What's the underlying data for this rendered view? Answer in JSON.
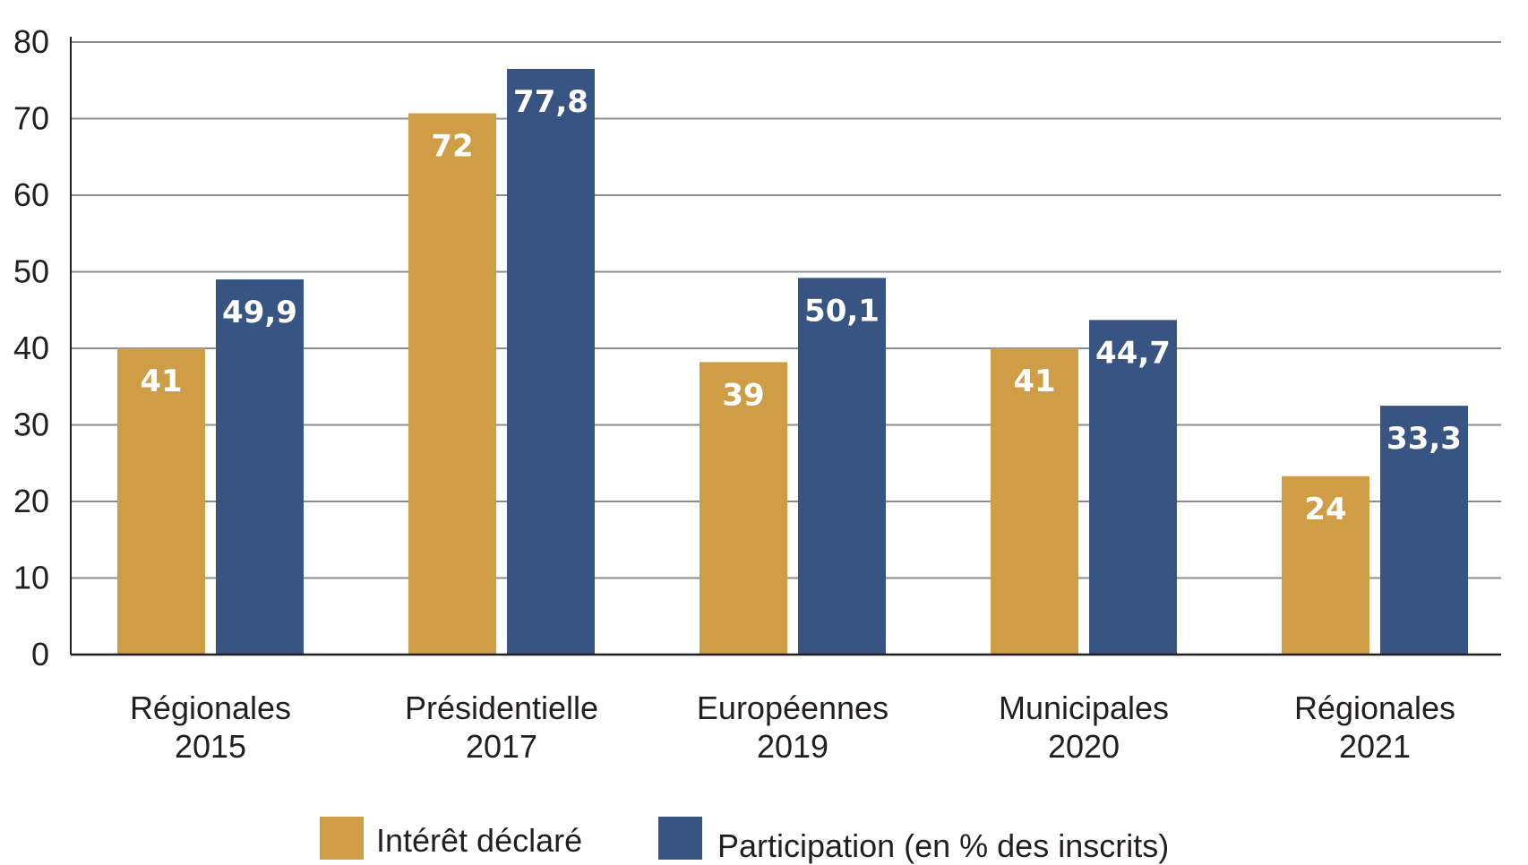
{
  "chart_data": {
    "type": "bar",
    "title": "",
    "xlabel": "",
    "ylabel": "",
    "ylim": [
      0,
      80
    ],
    "yticks": [
      0,
      10,
      20,
      30,
      40,
      50,
      60,
      70,
      80
    ],
    "ytick_labels": [
      "0",
      "10",
      "20",
      "30",
      "40",
      "50",
      "60",
      "70",
      "80"
    ],
    "grid": true,
    "legend_position": "bottom",
    "categories": [
      [
        "Régionales",
        "2015"
      ],
      [
        "Présidentielle",
        "2017"
      ],
      [
        "Européennes",
        "2019"
      ],
      [
        "Municipales",
        "2020"
      ],
      [
        "Régionales",
        "2021"
      ]
    ],
    "series": [
      {
        "name": "Intérêt déclaré",
        "color": "#cf9d45",
        "values": [
          41,
          72,
          39,
          41,
          24
        ],
        "labels": [
          "41",
          "72",
          "39",
          "41",
          "24"
        ],
        "plotted_values": [
          40,
          70.7,
          38.2,
          40,
          23.3
        ]
      },
      {
        "name": "Participation (en % des inscrits)",
        "color": "#375482",
        "values": [
          49.9,
          77.8,
          50.1,
          44.7,
          33.3
        ],
        "labels": [
          "49,9",
          "77,8",
          "50,1",
          "44,7",
          "33,3"
        ],
        "plotted_values": [
          49,
          76.5,
          49.2,
          43.7,
          32.5
        ]
      }
    ]
  }
}
